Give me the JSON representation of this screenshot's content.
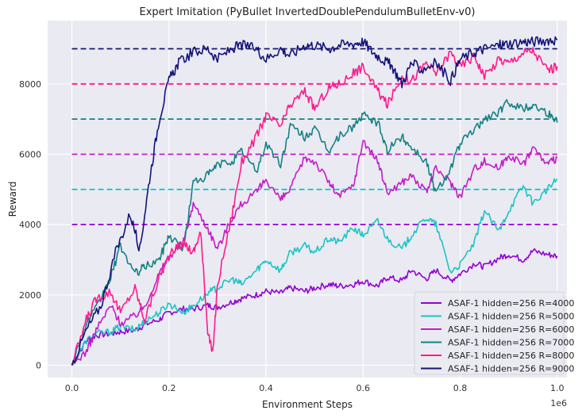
{
  "chart_data": {
    "type": "line",
    "title": "Expert Imitation (PyBullet InvertedDoublePendulumBulletEnv-v0)",
    "xlabel": "Environment Steps",
    "ylabel": "Reward",
    "x_multiplier_label": "1e6",
    "xlim": [
      -0.05,
      1.02
    ],
    "ylim": [
      -350,
      9800
    ],
    "x_ticks": [
      0.0,
      0.2,
      0.4,
      0.6,
      0.8,
      1.0
    ],
    "x_tick_labels": [
      "0.0",
      "0.2",
      "0.4",
      "0.6",
      "0.8",
      "1.0"
    ],
    "y_ticks": [
      0,
      2000,
      4000,
      6000,
      8000
    ],
    "y_tick_labels": [
      "0",
      "2000",
      "4000",
      "6000",
      "8000"
    ],
    "grid": true,
    "legend_position": "lower-right",
    "expert_levels": [
      {
        "value": 4000,
        "color": "#9400d3"
      },
      {
        "value": 5000,
        "color": "#1cc4c4"
      },
      {
        "value": 6000,
        "color": "#c21cc9"
      },
      {
        "value": 7000,
        "color": "#128282"
      },
      {
        "value": 8000,
        "color": "#ff1a8c"
      },
      {
        "value": 9000,
        "color": "#14147a"
      }
    ],
    "series": [
      {
        "name": "ASAF-1 hidden=256 R=4000",
        "color": "#9400d3",
        "x": [
          0,
          0.03,
          0.05,
          0.08,
          0.1,
          0.13,
          0.15,
          0.18,
          0.2,
          0.23,
          0.25,
          0.28,
          0.3,
          0.33,
          0.35,
          0.38,
          0.4,
          0.43,
          0.45,
          0.48,
          0.5,
          0.53,
          0.55,
          0.58,
          0.6,
          0.63,
          0.65,
          0.68,
          0.7,
          0.73,
          0.75,
          0.78,
          0.8,
          0.83,
          0.85,
          0.88,
          0.9,
          0.93,
          0.95,
          0.98,
          1.0
        ],
        "y": [
          0,
          700,
          850,
          900,
          950,
          1000,
          1150,
          1300,
          1500,
          1600,
          1600,
          1700,
          1650,
          1800,
          1900,
          2000,
          2100,
          2050,
          2200,
          2100,
          2200,
          2300,
          2250,
          2300,
          2400,
          2250,
          2500,
          2400,
          2700,
          2450,
          2700,
          2400,
          2600,
          2900,
          2800,
          3050,
          3150,
          3000,
          3250,
          3150,
          3100
        ]
      },
      {
        "name": "ASAF-1 hidden=256 R=5000",
        "color": "#1cc4c4",
        "x": [
          0,
          0.03,
          0.05,
          0.08,
          0.1,
          0.13,
          0.15,
          0.18,
          0.2,
          0.23,
          0.25,
          0.28,
          0.3,
          0.33,
          0.35,
          0.38,
          0.4,
          0.43,
          0.45,
          0.48,
          0.5,
          0.53,
          0.55,
          0.58,
          0.6,
          0.63,
          0.65,
          0.68,
          0.7,
          0.73,
          0.75,
          0.78,
          0.8,
          0.83,
          0.85,
          0.88,
          0.9,
          0.93,
          0.95,
          0.98,
          1.0
        ],
        "y": [
          0,
          700,
          900,
          950,
          1100,
          1000,
          1250,
          1500,
          1750,
          1500,
          1700,
          2050,
          2200,
          2450,
          2300,
          2700,
          3000,
          2700,
          3200,
          3400,
          3200,
          3600,
          3500,
          3900,
          3700,
          4100,
          3600,
          3300,
          3700,
          4200,
          4000,
          2650,
          2850,
          3500,
          4400,
          3800,
          4400,
          5100,
          4600,
          5000,
          5300
        ]
      },
      {
        "name": "ASAF-1 hidden=256 R=6000",
        "color": "#c21cc9",
        "x": [
          0,
          0.03,
          0.05,
          0.08,
          0.1,
          0.13,
          0.15,
          0.18,
          0.2,
          0.23,
          0.25,
          0.28,
          0.3,
          0.33,
          0.35,
          0.38,
          0.4,
          0.43,
          0.45,
          0.48,
          0.5,
          0.53,
          0.55,
          0.58,
          0.6,
          0.63,
          0.65,
          0.68,
          0.7,
          0.73,
          0.75,
          0.78,
          0.8,
          0.83,
          0.85,
          0.88,
          0.9,
          0.93,
          0.95,
          0.98,
          1.0
        ],
        "y": [
          0,
          400,
          1000,
          1700,
          1200,
          1400,
          1700,
          2600,
          3100,
          3500,
          4600,
          3900,
          3300,
          4200,
          4600,
          4900,
          5300,
          4700,
          5000,
          5900,
          5800,
          5200,
          4800,
          5100,
          6400,
          5800,
          4900,
          5200,
          5400,
          4900,
          5600,
          5200,
          4800,
          5600,
          5800,
          5600,
          6000,
          5700,
          6200,
          5700,
          5900
        ]
      },
      {
        "name": "ASAF-1 hidden=256 R=7000",
        "color": "#128282",
        "x": [
          0,
          0.03,
          0.05,
          0.08,
          0.1,
          0.13,
          0.15,
          0.18,
          0.2,
          0.23,
          0.25,
          0.28,
          0.3,
          0.33,
          0.35,
          0.38,
          0.4,
          0.43,
          0.45,
          0.48,
          0.5,
          0.53,
          0.55,
          0.58,
          0.6,
          0.63,
          0.65,
          0.68,
          0.7,
          0.73,
          0.75,
          0.78,
          0.8,
          0.83,
          0.85,
          0.88,
          0.9,
          0.93,
          0.95,
          0.98,
          1.0
        ],
        "y": [
          0,
          1200,
          1600,
          2500,
          3400,
          2600,
          2800,
          3000,
          3700,
          3300,
          5200,
          5400,
          5700,
          5800,
          6100,
          5500,
          6300,
          5700,
          6800,
          6500,
          6700,
          6100,
          6500,
          6800,
          7100,
          6900,
          6100,
          6500,
          6200,
          5800,
          4900,
          5600,
          6300,
          6700,
          7000,
          7200,
          7500,
          7300,
          7400,
          7200,
          6900
        ]
      },
      {
        "name": "ASAF-1 hidden=256 R=8000",
        "color": "#ff1a8c",
        "x": [
          0,
          0.03,
          0.05,
          0.08,
          0.1,
          0.13,
          0.15,
          0.18,
          0.2,
          0.23,
          0.25,
          0.265,
          0.28,
          0.29,
          0.3,
          0.33,
          0.35,
          0.38,
          0.4,
          0.43,
          0.45,
          0.48,
          0.5,
          0.53,
          0.55,
          0.58,
          0.6,
          0.63,
          0.65,
          0.68,
          0.7,
          0.73,
          0.75,
          0.78,
          0.8,
          0.83,
          0.85,
          0.88,
          0.9,
          0.93,
          0.95,
          0.98,
          1.0
        ],
        "y": [
          0,
          1300,
          1900,
          2100,
          1500,
          2200,
          1300,
          2500,
          3100,
          3500,
          3200,
          3800,
          1000,
          300,
          2300,
          4300,
          5800,
          6500,
          7100,
          6800,
          7400,
          7800,
          7300,
          7900,
          8000,
          8300,
          8500,
          7800,
          7400,
          8200,
          8100,
          8600,
          8300,
          8900,
          8500,
          8800,
          8200,
          8700,
          8600,
          8900,
          8950,
          8400,
          8500
        ]
      },
      {
        "name": "ASAF-1 hidden=256 R=9000",
        "color": "#14147a",
        "x": [
          0,
          0.03,
          0.06,
          0.09,
          0.12,
          0.14,
          0.16,
          0.18,
          0.2,
          0.22,
          0.25,
          0.28,
          0.3,
          0.33,
          0.35,
          0.38,
          0.4,
          0.43,
          0.45,
          0.48,
          0.5,
          0.53,
          0.55,
          0.58,
          0.6,
          0.62,
          0.64,
          0.66,
          0.68,
          0.7,
          0.72,
          0.75,
          0.78,
          0.8,
          0.83,
          0.85,
          0.88,
          0.9,
          0.93,
          0.95,
          0.98,
          1.0
        ],
        "y": [
          0,
          1000,
          1700,
          3200,
          4300,
          3300,
          5300,
          7000,
          8100,
          8600,
          8900,
          9000,
          8700,
          9000,
          9100,
          9000,
          8700,
          9000,
          8800,
          9100,
          9100,
          9000,
          9100,
          9150,
          9200,
          8900,
          8700,
          8500,
          8000,
          8600,
          8400,
          8600,
          8100,
          8700,
          8900,
          9000,
          9100,
          9150,
          9200,
          9200,
          9250,
          9250
        ]
      }
    ]
  }
}
